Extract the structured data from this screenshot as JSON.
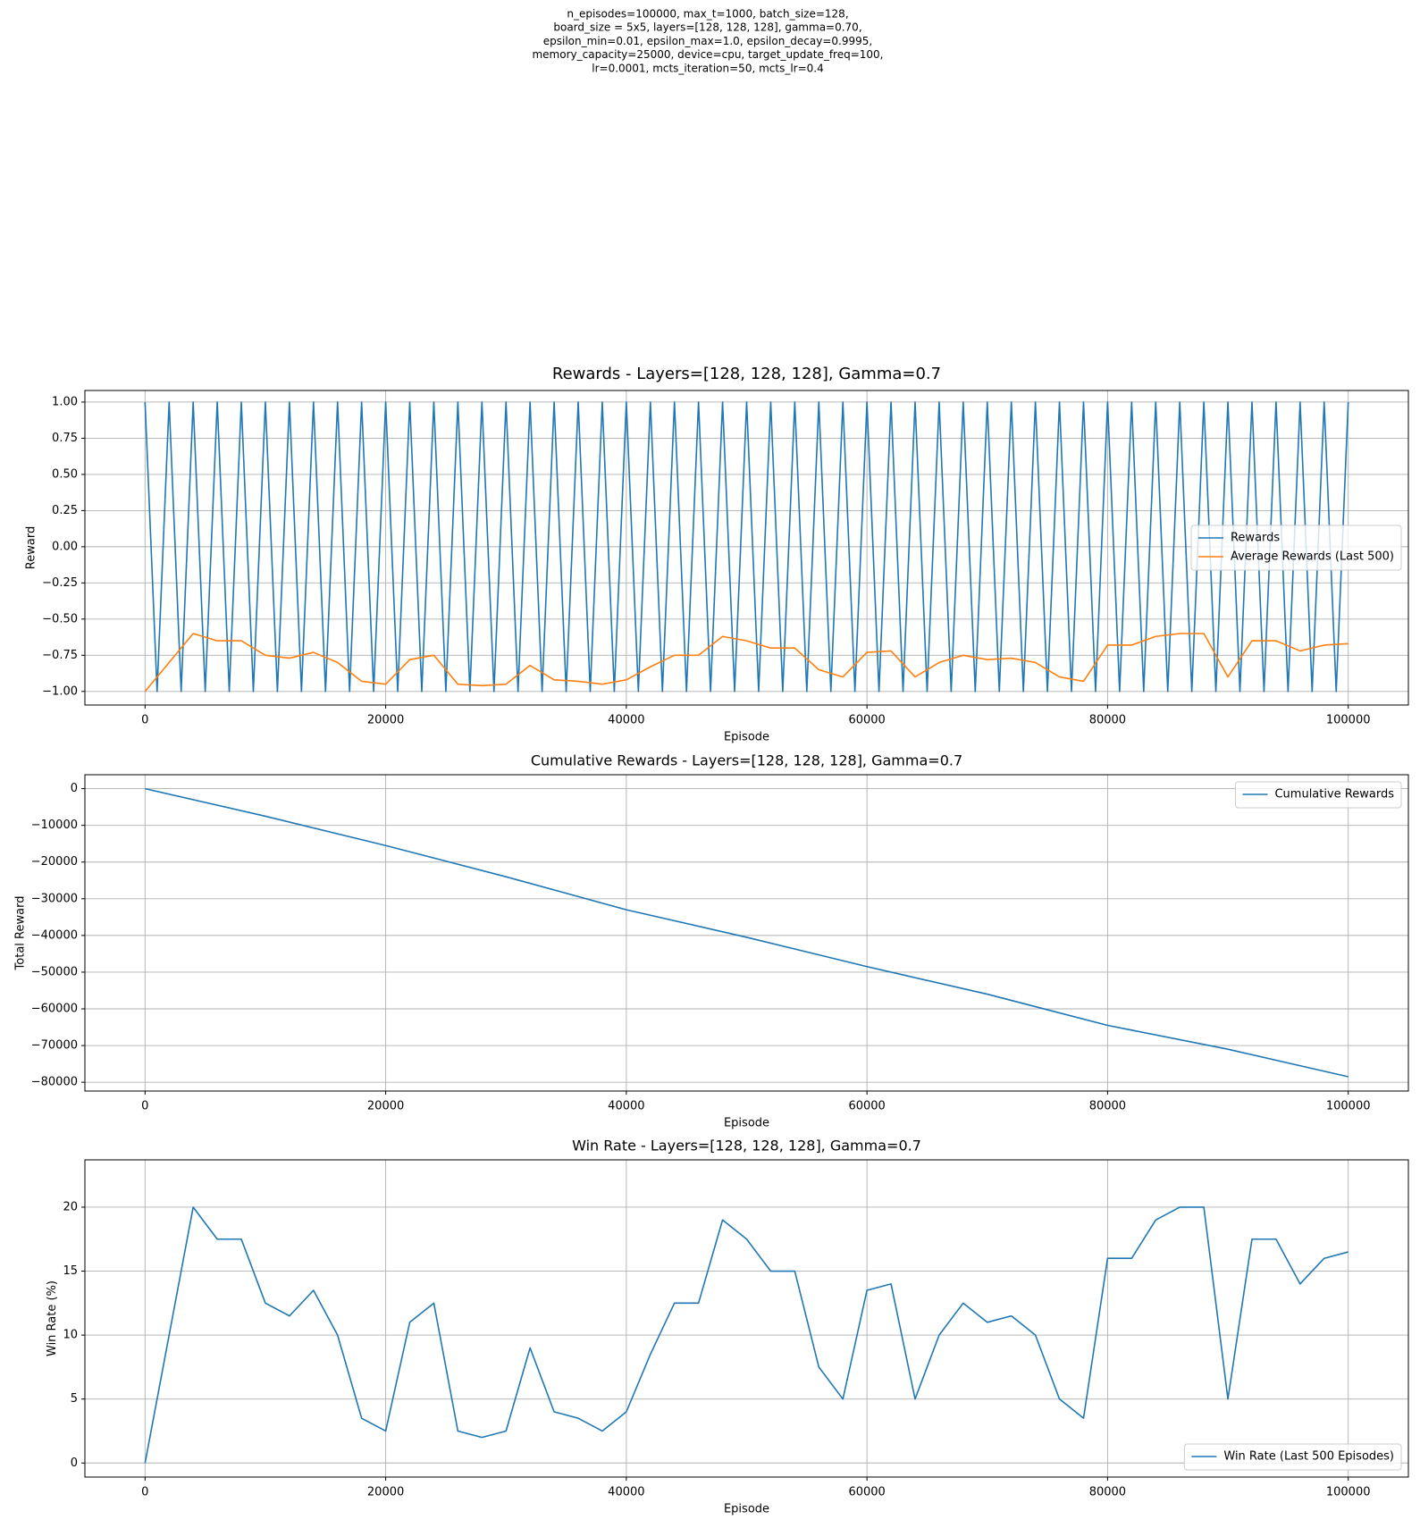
{
  "suptitle_lines": [
    "n_episodes=100000, max_t=1000, batch_size=128,",
    "board_size = 5x5, layers=[128, 128, 128], gamma=0.70,",
    "epsilon_min=0.01, epsilon_max=1.0, epsilon_decay=0.9995,",
    "memory_capacity=25000, device=cpu, target_update_freq=100,",
    "lr=0.0001, mcts_iteration=50, mcts_lr=0.4"
  ],
  "chart_data": [
    {
      "type": "line",
      "title": "Rewards - Layers=[128, 128, 128], Gamma=0.7",
      "x_label": "Episode",
      "y_label": "Reward",
      "grid": true,
      "legend": "center right",
      "xlim": [
        -5000,
        105000
      ],
      "xticks": [
        0,
        20000,
        40000,
        60000,
        80000,
        100000
      ],
      "ylim": [
        -1.094,
        1.08
      ],
      "yticks": [
        {
          "value": -1,
          "label": "−1.00"
        },
        {
          "value": -0.75,
          "label": "−0.75"
        },
        {
          "value": -0.5,
          "label": "−0.50"
        },
        {
          "value": -0.25,
          "label": "−0.25"
        },
        {
          "value": 0,
          "label": "0.00"
        },
        {
          "value": 0.25,
          "label": "0.25"
        },
        {
          "value": 0.5,
          "label": "0.50"
        },
        {
          "value": 0.75,
          "label": "0.75"
        },
        {
          "value": 1,
          "label": "1.00"
        }
      ],
      "series": [
        {
          "name": "Rewards",
          "color": "#1f77b4",
          "x": [
            0,
            1000,
            2000,
            3000,
            4000,
            5000,
            6000,
            7000,
            8000,
            9000,
            10000,
            11000,
            12000,
            13000,
            14000,
            15000,
            16000,
            17000,
            18000,
            19000,
            20000,
            21000,
            22000,
            23000,
            24000,
            25000,
            26000,
            27000,
            28000,
            29000,
            30000,
            31000,
            32000,
            33000,
            34000,
            35000,
            36000,
            37000,
            38000,
            39000,
            40000,
            41000,
            42000,
            43000,
            44000,
            45000,
            46000,
            47000,
            48000,
            49000,
            50000,
            51000,
            52000,
            53000,
            54000,
            55000,
            56000,
            57000,
            58000,
            59000,
            60000,
            61000,
            62000,
            63000,
            64000,
            65000,
            66000,
            67000,
            68000,
            69000,
            70000,
            71000,
            72000,
            73000,
            74000,
            75000,
            76000,
            77000,
            78000,
            79000,
            80000,
            81000,
            82000,
            83000,
            84000,
            85000,
            86000,
            87000,
            88000,
            89000,
            90000,
            91000,
            92000,
            93000,
            94000,
            95000,
            96000,
            97000,
            98000,
            99000,
            100000
          ],
          "values": [
            1,
            -1,
            1,
            -1,
            1,
            -1,
            1,
            -1,
            1,
            -1,
            1,
            -1,
            1,
            -1,
            1,
            -1,
            1,
            -1,
            1,
            -1,
            1,
            -1,
            1,
            -1,
            1,
            -1,
            1,
            -1,
            1,
            -1,
            1,
            -1,
            1,
            -1,
            1,
            -1,
            1,
            -1,
            1,
            -1,
            1,
            -1,
            1,
            -1,
            1,
            -1,
            1,
            -1,
            1,
            -1,
            1,
            -1,
            1,
            -1,
            1,
            -1,
            1,
            -1,
            1,
            -1,
            1,
            -1,
            1,
            -1,
            1,
            -1,
            1,
            -1,
            1,
            -1,
            1,
            -1,
            1,
            -1,
            1,
            -1,
            1,
            -1,
            1,
            -1,
            1,
            -1,
            1,
            -1,
            1,
            -1,
            1,
            -1,
            1,
            -1,
            1,
            -1,
            1,
            -1,
            1,
            -1,
            1,
            -1,
            1,
            -1,
            1
          ]
        },
        {
          "name": "Average Rewards (Last 500)",
          "color": "#ff7f0e",
          "x": [
            0,
            2000,
            4000,
            6000,
            8000,
            10000,
            12000,
            14000,
            16000,
            18000,
            20000,
            22000,
            24000,
            26000,
            28000,
            30000,
            32000,
            34000,
            36000,
            38000,
            40000,
            42000,
            44000,
            46000,
            48000,
            50000,
            52000,
            54000,
            56000,
            58000,
            60000,
            62000,
            64000,
            66000,
            68000,
            70000,
            72000,
            74000,
            76000,
            78000,
            80000,
            82000,
            84000,
            86000,
            88000,
            90000,
            92000,
            94000,
            96000,
            98000,
            100000
          ],
          "values": [
            -1.0,
            -0.8,
            -0.6,
            -0.65,
            -0.65,
            -0.75,
            -0.77,
            -0.73,
            -0.8,
            -0.93,
            -0.95,
            -0.78,
            -0.75,
            -0.95,
            -0.96,
            -0.95,
            -0.82,
            -0.92,
            -0.93,
            -0.95,
            -0.92,
            -0.83,
            -0.75,
            -0.75,
            -0.62,
            -0.65,
            -0.7,
            -0.7,
            -0.85,
            -0.9,
            -0.73,
            -0.72,
            -0.9,
            -0.8,
            -0.75,
            -0.78,
            -0.77,
            -0.8,
            -0.9,
            -0.93,
            -0.68,
            -0.68,
            -0.62,
            -0.6,
            -0.6,
            -0.9,
            -0.65,
            -0.65,
            -0.72,
            -0.68,
            -0.67
          ]
        }
      ]
    },
    {
      "type": "line",
      "title": "Cumulative Rewards - Layers=[128, 128, 128], Gamma=0.7",
      "x_label": "Episode",
      "y_label": "Total Reward",
      "grid": true,
      "legend": "upper right",
      "xlim": [
        -5000,
        105000
      ],
      "xticks": [
        0,
        20000,
        40000,
        60000,
        80000,
        100000
      ],
      "ylim": [
        -82400,
        3800
      ],
      "yticks": [
        {
          "value": -80000,
          "label": "−80000"
        },
        {
          "value": -70000,
          "label": "−70000"
        },
        {
          "value": -60000,
          "label": "−60000"
        },
        {
          "value": -50000,
          "label": "−50000"
        },
        {
          "value": -40000,
          "label": "−40000"
        },
        {
          "value": -30000,
          "label": "−30000"
        },
        {
          "value": -20000,
          "label": "−20000"
        },
        {
          "value": -10000,
          "label": "−10000"
        },
        0
      ],
      "series": [
        {
          "name": "Cumulative Rewards",
          "color": "#1f77b4",
          "x": [
            0,
            10000,
            20000,
            30000,
            40000,
            50000,
            60000,
            70000,
            80000,
            90000,
            100000
          ],
          "values": [
            0,
            -7500,
            -15500,
            -24000,
            -33000,
            -40500,
            -48500,
            -56000,
            -64500,
            -71000,
            -78500
          ]
        }
      ]
    },
    {
      "type": "line",
      "title": "Win Rate - Layers=[128, 128, 128], Gamma=0.7",
      "x_label": "Episode",
      "y_label": "Win Rate (%)",
      "grid": true,
      "legend": "lower right",
      "xlim": [
        -5000,
        105000
      ],
      "xticks": [
        0,
        20000,
        40000,
        60000,
        80000,
        100000
      ],
      "ylim": [
        -1.1,
        23.7
      ],
      "yticks": [
        0,
        5,
        10,
        15,
        20
      ],
      "series": [
        {
          "name": "Win Rate (Last 500 Episodes)",
          "color": "#1f77b4",
          "x": [
            0,
            2000,
            4000,
            6000,
            8000,
            10000,
            12000,
            14000,
            16000,
            18000,
            20000,
            22000,
            24000,
            26000,
            28000,
            30000,
            32000,
            34000,
            36000,
            38000,
            40000,
            42000,
            44000,
            46000,
            48000,
            50000,
            52000,
            54000,
            56000,
            58000,
            60000,
            62000,
            64000,
            66000,
            68000,
            70000,
            72000,
            74000,
            76000,
            78000,
            80000,
            82000,
            84000,
            86000,
            88000,
            90000,
            92000,
            94000,
            96000,
            98000,
            100000
          ],
          "values": [
            0,
            10,
            20,
            17.5,
            17.5,
            12.5,
            11.5,
            13.5,
            10,
            3.5,
            2.5,
            11,
            12.5,
            2.5,
            2,
            2.5,
            9,
            4,
            3.5,
            2.5,
            4,
            8.5,
            12.5,
            12.5,
            19,
            17.5,
            15,
            15,
            7.5,
            5,
            13.5,
            14,
            5,
            10,
            12.5,
            11,
            11.5,
            10,
            5,
            3.5,
            16,
            16,
            19,
            20,
            20,
            5,
            17.5,
            17.5,
            14,
            16,
            16.5
          ]
        }
      ]
    }
  ]
}
